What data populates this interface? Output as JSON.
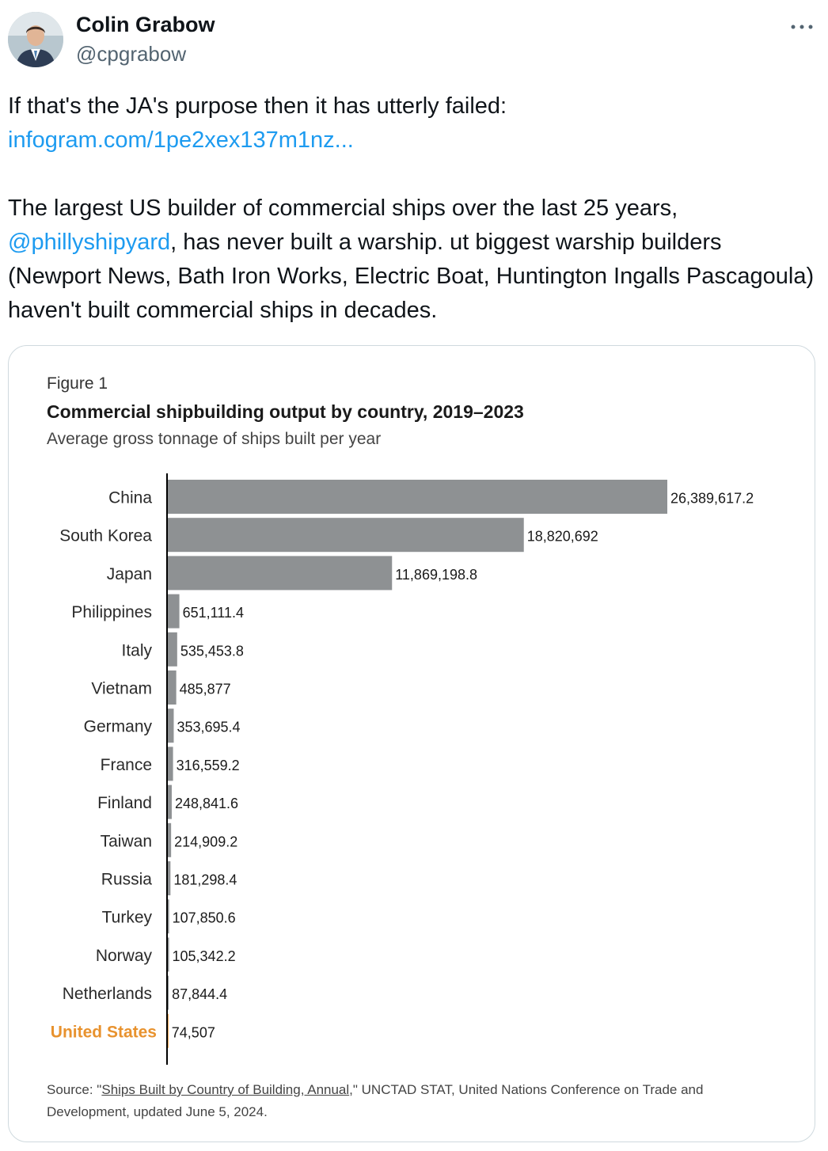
{
  "author": {
    "name": "Colin Grabow",
    "handle": "@cpgrabow",
    "avatar_icon": "avatar"
  },
  "more_icon": "more-dots-icon",
  "tweet": {
    "line1": "If that's the JA's purpose then it has utterly failed:",
    "link": "infogram.com/1pe2xex137m1nz...",
    "para2_before": "The largest US builder of commercial ships over the last 25 years, ",
    "mention": "@phillyshipyard",
    "para2_after": ", has never built a warship. ut biggest warship builders (Newport News, Bath Iron Works, Electric Boat, Huntington Ingalls Pascagoula) haven't built commercial ships in decades."
  },
  "figure": {
    "label": "Figure 1",
    "source_prefix": "Source: \"",
    "source_link": "Ships Built by Country of Building, Annual",
    "source_suffix": ",\" UNCTAD STAT, United Nations Conference on Trade and Development, updated June 5, 2024."
  },
  "colors": {
    "bar": "#8e9193",
    "highlight": "#e8922e",
    "axis": "#000000",
    "link": "#1d9bf0"
  },
  "chart_data": {
    "type": "bar",
    "orientation": "horizontal",
    "title": "Commercial shipbuilding output by country, 2019–2023",
    "subtitle": "Average gross tonnage of ships built per year",
    "categories": [
      "China",
      "South Korea",
      "Japan",
      "Philippines",
      "Italy",
      "Vietnam",
      "Germany",
      "France",
      "Finland",
      "Taiwan",
      "Russia",
      "Turkey",
      "Norway",
      "Netherlands",
      "United States"
    ],
    "values": [
      26389617.2,
      18820692,
      11869198.8,
      651111.4,
      535453.8,
      485877,
      353695.4,
      316559.2,
      248841.6,
      214909.2,
      181298.4,
      107850.6,
      105342.2,
      87844.4,
      74507
    ],
    "value_labels": [
      "26,389,617.2",
      "18,820,692",
      "11,869,198.8",
      "651,111.4",
      "535,453.8",
      "485,877",
      "353,695.4",
      "316,559.2",
      "248,841.6",
      "214,909.2",
      "181,298.4",
      "107,850.6",
      "105,342.2",
      "87,844.4",
      "74,507"
    ],
    "highlight": "United States",
    "grid": false,
    "legend": "none",
    "xlim": [
      0,
      26389617.2
    ]
  }
}
